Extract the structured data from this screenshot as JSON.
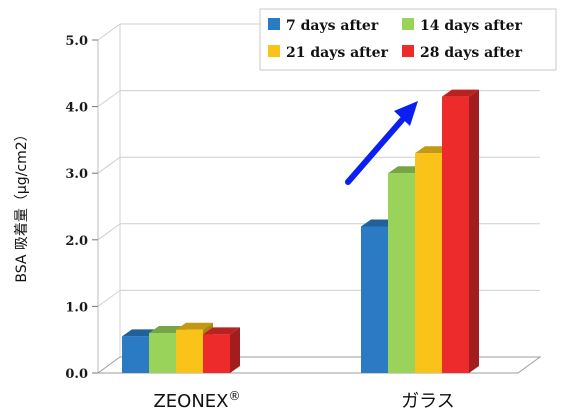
{
  "chart_data": {
    "type": "bar",
    "categories": [
      "ZEONEX®",
      "ガラス"
    ],
    "series": [
      {
        "name": "7 days after",
        "values": [
          0.55,
          2.2
        ],
        "color": "#2a7bc4"
      },
      {
        "name": "14 days after",
        "values": [
          0.6,
          3.0
        ],
        "color": "#99d35a"
      },
      {
        "name": "21 days after",
        "values": [
          0.65,
          3.3
        ],
        "color": "#f9c31a"
      },
      {
        "name": "28 days after",
        "values": [
          0.58,
          4.15
        ],
        "color": "#ee2b2b"
      }
    ],
    "ylabel": "BSA 吸着量（μg/cm2）",
    "ylim": [
      0,
      5
    ],
    "yticks": [
      "0.0",
      "1.0",
      "2.0",
      "3.0",
      "4.0",
      "5.0"
    ],
    "grid": true,
    "legend": "top-right",
    "annotation": "blue arrow indicating increase"
  }
}
